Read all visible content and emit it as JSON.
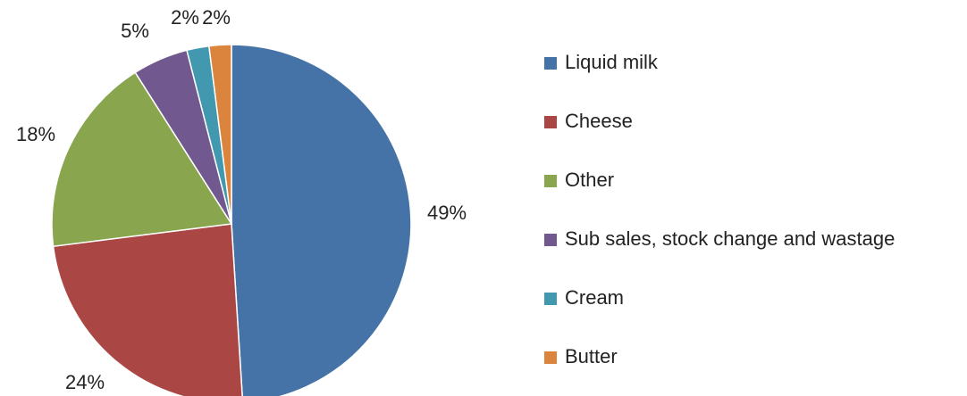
{
  "chart_data": {
    "type": "pie",
    "title": "",
    "legend_position": "right",
    "slices": [
      {
        "name": "Liquid milk",
        "value": 49,
        "label": "49%",
        "color": "#4572A7"
      },
      {
        "name": "Cheese",
        "value": 24,
        "label": "24%",
        "color": "#AA4643"
      },
      {
        "name": "Other",
        "value": 18,
        "label": "18%",
        "color": "#89A54E"
      },
      {
        "name": "Sub sales, stock change and wastage",
        "value": 5,
        "label": "5%",
        "color": "#71588F"
      },
      {
        "name": "Cream",
        "value": 2,
        "label": "2%",
        "color": "#4198AF"
      },
      {
        "name": "Butter",
        "value": 2,
        "label": "2%",
        "color": "#DB843D"
      }
    ]
  }
}
